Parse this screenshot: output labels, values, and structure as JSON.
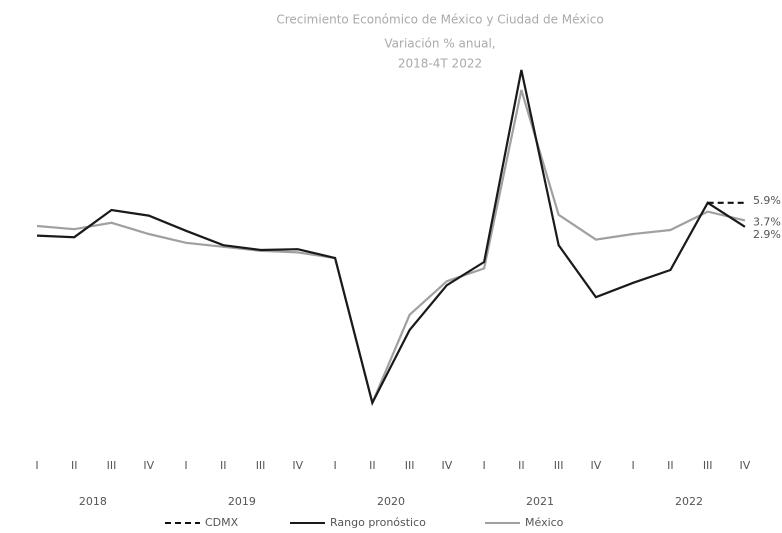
{
  "chart_data": {
    "type": "line",
    "title": "Crecimiento Económico de México y Ciudad de México",
    "subtitle": [
      "Variación % anual,",
      "2018-4T 2022"
    ],
    "categories": [
      "I",
      "II",
      "III",
      "IV",
      "I",
      "II",
      "III",
      "IV",
      "I",
      "II",
      "III",
      "IV",
      "I",
      "II",
      "III",
      "IV",
      "I",
      "II",
      "III",
      "IV"
    ],
    "years": [
      "2018",
      "2019",
      "2020",
      "2021",
      "2022"
    ],
    "ylim": [
      -25,
      25
    ],
    "legend": "bottom",
    "series": [
      {
        "name": "CDMX",
        "color": "#111111",
        "dash": true,
        "values": [
          null,
          null,
          null,
          null,
          null,
          null,
          null,
          null,
          null,
          null,
          null,
          null,
          null,
          null,
          null,
          null,
          null,
          null,
          5.9,
          5.9
        ],
        "value_labels": [
          null,
          null,
          null,
          null,
          null,
          null,
          null,
          null,
          null,
          null,
          null,
          null,
          null,
          null,
          null,
          null,
          null,
          null,
          null,
          "5.9%"
        ]
      },
      {
        "name": "Rango pronóstico",
        "color": "#1a1a1a",
        "dash": false,
        "values": [
          1.8,
          1.6,
          5.0,
          4.3,
          2.4,
          0.6,
          0,
          0.1,
          -1.0,
          -19.1,
          -10.0,
          -4.4,
          -1.5,
          22.5,
          0.6,
          -5.9,
          -4.1,
          -2.5,
          5.9,
          2.9
        ],
        "value_labels": [
          null,
          null,
          null,
          null,
          null,
          null,
          null,
          null,
          null,
          null,
          null,
          null,
          null,
          null,
          null,
          null,
          null,
          null,
          null,
          "2.9%"
        ]
      },
      {
        "name": "México",
        "color": "#a0a0a0",
        "dash": false,
        "values": [
          3.0,
          2.6,
          3.4,
          2.0,
          0.9,
          0.4,
          -0.1,
          -0.3,
          -1.0,
          -19.1,
          -8.1,
          -3.9,
          -2.3,
          20.0,
          4.4,
          1.3,
          2.0,
          2.5,
          4.8,
          3.7
        ],
        "value_labels": [
          null,
          null,
          null,
          null,
          null,
          null,
          null,
          null,
          null,
          null,
          null,
          null,
          null,
          null,
          null,
          null,
          null,
          null,
          null,
          "3.7%"
        ]
      }
    ]
  }
}
